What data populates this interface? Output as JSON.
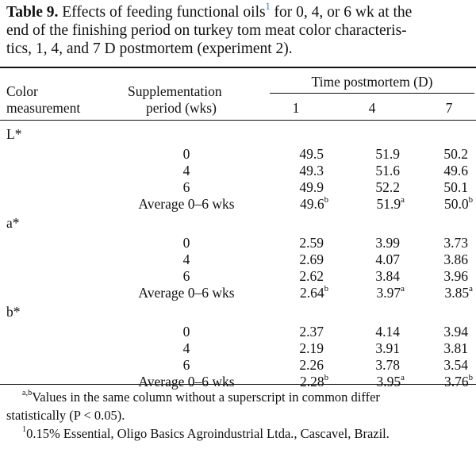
{
  "title": {
    "label": "Table 9.",
    "line1": "Effects of feeding functional oils",
    "line1_sup": "1",
    "line1_tail": "for 0, 4, or 6 wk at the",
    "line2": "end of the finishing period on turkey tom meat color characteris-",
    "line3": "tics, 1, 4, and 7 D postmortem (experiment 2)."
  },
  "header": {
    "col1_line1": "Color",
    "col1_line2": "measurement",
    "col2_line1": "Supplementation",
    "col2_line2": "period (wks)",
    "span": "Time postmortem (D)",
    "days": [
      "1",
      "4",
      "7"
    ]
  },
  "groups": [
    {
      "name": "L*",
      "rows": [
        {
          "period": "0",
          "v": [
            "49.5",
            "51.9",
            "50.2"
          ],
          "sup": [
            "",
            "",
            ""
          ]
        },
        {
          "period": "4",
          "v": [
            "49.3",
            "51.6",
            "49.6"
          ],
          "sup": [
            "",
            "",
            ""
          ]
        },
        {
          "period": "6",
          "v": [
            "49.9",
            "52.2",
            "50.1"
          ],
          "sup": [
            "",
            "",
            ""
          ]
        },
        {
          "period": "Average 0–6 wks",
          "v": [
            "49.6",
            "51.9",
            "50.0"
          ],
          "sup": [
            "b",
            "a",
            "b"
          ]
        }
      ]
    },
    {
      "name": "a*",
      "rows": [
        {
          "period": "0",
          "v": [
            "2.59",
            "3.99",
            "3.73"
          ],
          "sup": [
            "",
            "",
            ""
          ]
        },
        {
          "period": "4",
          "v": [
            "2.69",
            "4.07",
            "3.86"
          ],
          "sup": [
            "",
            "",
            ""
          ]
        },
        {
          "period": "6",
          "v": [
            "2.62",
            "3.84",
            "3.96"
          ],
          "sup": [
            "",
            "",
            ""
          ]
        },
        {
          "period": "Average 0–6 wks",
          "v": [
            "2.64",
            "3.97",
            "3.85"
          ],
          "sup": [
            "b",
            "a",
            "a"
          ]
        }
      ]
    },
    {
      "name": "b*",
      "rows": [
        {
          "period": "0",
          "v": [
            "2.37",
            "4.14",
            "3.94"
          ],
          "sup": [
            "",
            "",
            ""
          ]
        },
        {
          "period": "4",
          "v": [
            "2.19",
            "3.91",
            "3.81"
          ],
          "sup": [
            "",
            "",
            ""
          ]
        },
        {
          "period": "6",
          "v": [
            "2.26",
            "3.78",
            "3.54"
          ],
          "sup": [
            "",
            "",
            ""
          ]
        },
        {
          "period": "Average 0–6 wks",
          "v": [
            "2.28",
            "3.95",
            "3.76"
          ],
          "sup": [
            "b",
            "a",
            "b"
          ]
        }
      ]
    }
  ],
  "footnotes": {
    "ab_sup": "a,b",
    "ab_line1": "Values in the same column without a superscript in common differ",
    "ab_line2": "statistically (P < 0.05).",
    "fn1_sup": "1",
    "fn1_text": "0.15% Essential, Oligo Basics Agroindustrial Ltda., Cascavel, Brazil."
  }
}
